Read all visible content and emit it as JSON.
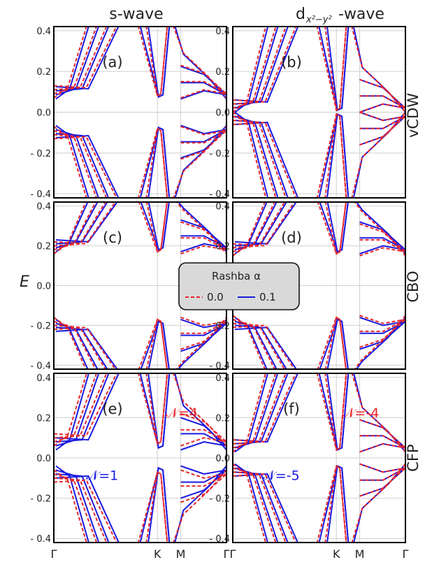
{
  "figure": {
    "column_titles": [
      "s-wave",
      "d",
      "x²−y²",
      "-wave"
    ],
    "row_labels": [
      "vCDW",
      "CBO",
      "CFP"
    ],
    "ylabel": "E",
    "legend_title": "Rashba α",
    "legend_entries": [
      "0.0",
      "0.1"
    ],
    "colors": {
      "alpha_0": "#e8262b",
      "alpha_01": "#1a1ae0",
      "frame": "#000000",
      "grid": "#cfcfcf"
    }
  },
  "chart_data": [
    {
      "type": "line",
      "panel": "(a)",
      "row": "vCDW",
      "column": "s-wave",
      "xticks": [
        "Γ",
        "K",
        "M",
        "Γ"
      ],
      "yticks": [
        "0.4",
        "0.2",
        "0.0",
        "-0.2",
        "-0.4"
      ],
      "ylim": [
        -0.42,
        0.42
      ],
      "xlim": [
        0,
        3.73
      ],
      "grid": true,
      "series": [
        {
          "name": "0.0",
          "x": [
            0,
            1,
            1.5,
            1.73
          ],
          "gap": 0.07
        },
        {
          "name": "0.1",
          "x": [
            0,
            1,
            1.5,
            1.73
          ],
          "gap": 0.065
        }
      ]
    },
    {
      "type": "line",
      "panel": "(b)",
      "row": "vCDW",
      "column": "dx²−y²-wave",
      "xticks": [
        "Γ",
        "K",
        "M",
        "Γ"
      ],
      "yticks": [
        "0.4",
        "0.2",
        "0.0",
        "-0.2",
        "-0.4"
      ],
      "ylim": [
        -0.42,
        0.42
      ],
      "grid": true,
      "series": [
        {
          "name": "0.0",
          "gap": 0.0
        },
        {
          "name": "0.1",
          "gap": 0.0
        }
      ]
    },
    {
      "type": "line",
      "panel": "(c)",
      "row": "CBO",
      "column": "s-wave",
      "xticks": [
        "Γ",
        "K",
        "M",
        "Γ"
      ],
      "yticks": [
        "0.4",
        "0.2",
        "0.0",
        "-0.2",
        "-0.4"
      ],
      "ylim": [
        -0.42,
        0.42
      ],
      "grid": true,
      "series": [
        {
          "name": "0.0",
          "gap": 0.16
        },
        {
          "name": "0.1",
          "gap": 0.17
        }
      ]
    },
    {
      "type": "line",
      "panel": "(d)",
      "row": "CBO",
      "column": "dx²−y²-wave",
      "xticks": [
        "Γ",
        "K",
        "M",
        "Γ"
      ],
      "yticks": [
        "0.4",
        "0.2",
        "0.0",
        "-0.2",
        "-0.4"
      ],
      "ylim": [
        -0.42,
        0.42
      ],
      "grid": true,
      "series": [
        {
          "name": "0.0",
          "gap": 0.15
        },
        {
          "name": "0.1",
          "gap": 0.16
        }
      ]
    },
    {
      "type": "line",
      "panel": "(e)",
      "row": "CFP",
      "column": "s-wave",
      "xticks": [
        "Γ",
        "K",
        "M",
        "Γ"
      ],
      "yticks": [
        "0.4",
        "0.2",
        "0.0",
        "-0.2",
        "-0.4"
      ],
      "ylim": [
        -0.42,
        0.42
      ],
      "grid": true,
      "annotations": [
        {
          "text": "𝒩=4",
          "color": "#e8262b"
        },
        {
          "text": "𝒩=1",
          "color": "#1a1ae0"
        }
      ],
      "series": [
        {
          "name": "0.0",
          "gap": 0.06
        },
        {
          "name": "0.1",
          "gap": 0.04
        }
      ]
    },
    {
      "type": "line",
      "panel": "(f)",
      "row": "CFP",
      "column": "dx²−y²-wave",
      "xticks": [
        "Γ",
        "K",
        "M",
        "Γ"
      ],
      "yticks": [
        "0.4",
        "0.2",
        "0.0",
        "-0.2",
        "-0.4"
      ],
      "ylim": [
        -0.42,
        0.42
      ],
      "grid": true,
      "annotations": [
        {
          "text": "𝒩=-4",
          "color": "#e8262b"
        },
        {
          "text": "𝒩=-5",
          "color": "#1a1ae0"
        }
      ],
      "series": [
        {
          "name": "0.0",
          "gap": 0.03
        },
        {
          "name": "0.1",
          "gap": 0.03
        }
      ]
    }
  ]
}
